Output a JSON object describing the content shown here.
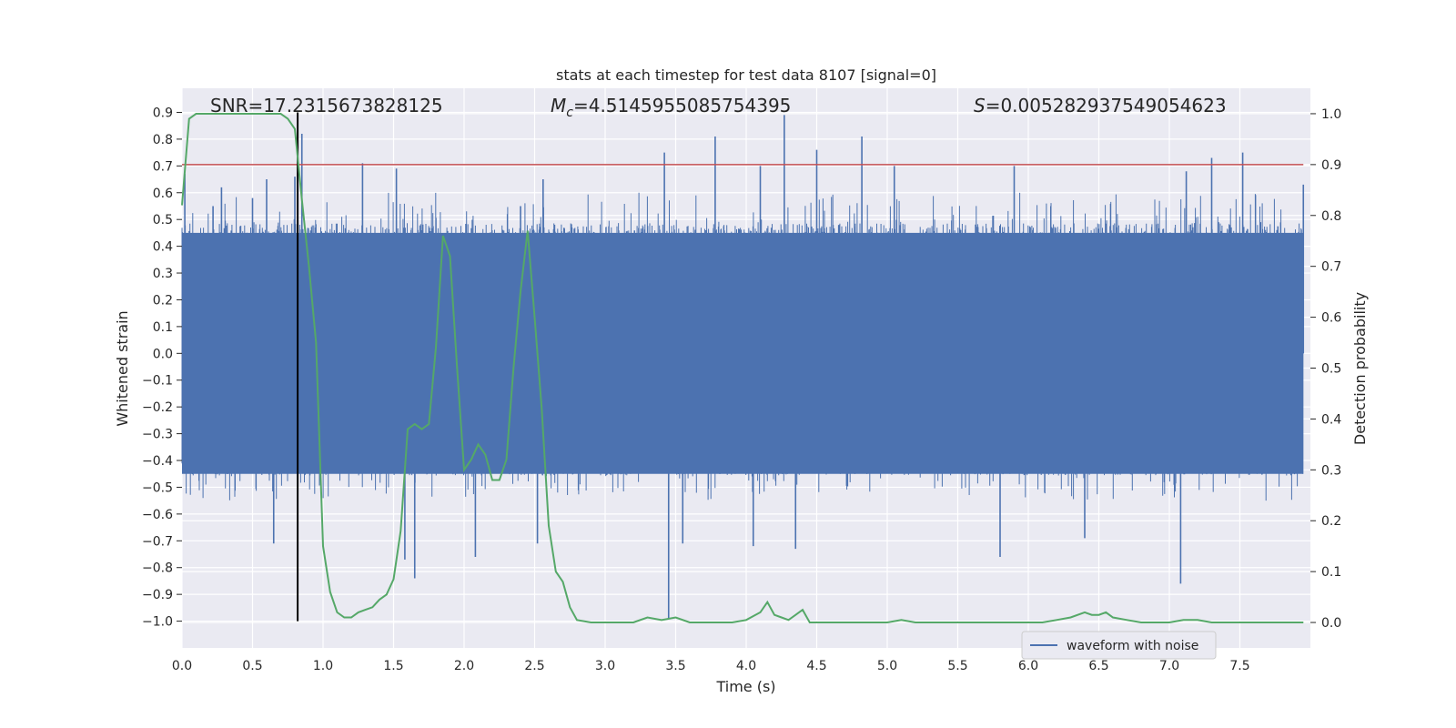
{
  "chart_data": {
    "type": "line",
    "title": "stats at each timestep for test data 8107 [signal=0]",
    "xlabel": "Time (s)",
    "ylabel_left": "Whitened strain",
    "ylabel_right": "Detection probability",
    "xlim": [
      0.0,
      8.0
    ],
    "ylim_left": [
      -1.1,
      0.99
    ],
    "ylim_right": [
      -0.05,
      1.05
    ],
    "x_ticks": [
      "0.0",
      "0.5",
      "1.0",
      "1.5",
      "2.0",
      "2.5",
      "3.0",
      "3.5",
      "4.0",
      "4.5",
      "5.0",
      "5.5",
      "6.0",
      "6.5",
      "7.0",
      "7.5"
    ],
    "y_left_ticks": [
      "0.9",
      "0.8",
      "0.7",
      "0.6",
      "0.5",
      "0.4",
      "0.3",
      "0.2",
      "0.1",
      "0.0",
      "−0.1",
      "−0.2",
      "−0.3",
      "−0.4",
      "−0.5",
      "−0.6",
      "−0.7",
      "−0.8",
      "−0.9",
      "−1.0"
    ],
    "y_right_ticks": [
      "1.0",
      "0.9",
      "0.8",
      "0.7",
      "0.6",
      "0.5",
      "0.4",
      "0.3",
      "0.2",
      "0.1",
      "0.0"
    ],
    "grid": true,
    "legend": {
      "placement": "lower-right",
      "entries": [
        "waveform with noise"
      ]
    },
    "annotations": {
      "snr": "SNR=17.2315673828125",
      "mc_symbol": "M",
      "mc_sub": "c",
      "mc_value": "=4.5145955085754395",
      "s_symbol": "S",
      "s_value": "=0.005282937549054623"
    },
    "threshold": {
      "value": 0.9,
      "axis": "right",
      "color": "#c44e52"
    },
    "peak_marker": {
      "x": 0.82,
      "y_from": -1.0,
      "y_to": 0.9,
      "color": "#000000"
    },
    "series": [
      {
        "name": "waveform with noise",
        "axis": "left",
        "color": "#4c72b0",
        "kind": "noise",
        "band_low": -0.45,
        "band_high": 0.45,
        "envelope": [
          -0.55,
          0.6
        ],
        "spikes": [
          {
            "x": 0.02,
            "y": 0.67
          },
          {
            "x": 0.22,
            "y": 0.55
          },
          {
            "x": 0.28,
            "y": 0.62
          },
          {
            "x": 0.5,
            "y": 0.58
          },
          {
            "x": 0.6,
            "y": 0.65
          },
          {
            "x": 0.8,
            "y": 0.66
          },
          {
            "x": 0.85,
            "y": 0.82
          },
          {
            "x": 1.28,
            "y": 0.71
          },
          {
            "x": 1.52,
            "y": 0.69
          },
          {
            "x": 2.4,
            "y": 0.55
          },
          {
            "x": 2.56,
            "y": 0.65
          },
          {
            "x": 3.42,
            "y": 0.75
          },
          {
            "x": 3.78,
            "y": 0.81
          },
          {
            "x": 4.1,
            "y": 0.7
          },
          {
            "x": 4.27,
            "y": 0.89
          },
          {
            "x": 4.5,
            "y": 0.76
          },
          {
            "x": 4.82,
            "y": 0.81
          },
          {
            "x": 5.05,
            "y": 0.7
          },
          {
            "x": 5.9,
            "y": 0.7
          },
          {
            "x": 7.12,
            "y": 0.68
          },
          {
            "x": 7.3,
            "y": 0.73
          },
          {
            "x": 7.52,
            "y": 0.75
          },
          {
            "x": 7.95,
            "y": 0.63
          },
          {
            "x": 0.65,
            "y": -0.71
          },
          {
            "x": 1.58,
            "y": -0.77
          },
          {
            "x": 1.65,
            "y": -0.84
          },
          {
            "x": 2.08,
            "y": -0.76
          },
          {
            "x": 2.52,
            "y": -0.71
          },
          {
            "x": 3.45,
            "y": -0.99
          },
          {
            "x": 3.55,
            "y": -0.71
          },
          {
            "x": 4.05,
            "y": -0.72
          },
          {
            "x": 4.35,
            "y": -0.73
          },
          {
            "x": 5.8,
            "y": -0.76
          },
          {
            "x": 6.4,
            "y": -0.69
          },
          {
            "x": 7.08,
            "y": -0.86
          }
        ]
      },
      {
        "name": "detection probability",
        "axis": "right",
        "color": "#55a868",
        "x": [
          0.0,
          0.05,
          0.1,
          0.2,
          0.3,
          0.4,
          0.5,
          0.6,
          0.7,
          0.75,
          0.8,
          0.85,
          0.9,
          0.95,
          1.0,
          1.05,
          1.1,
          1.15,
          1.2,
          1.25,
          1.3,
          1.35,
          1.4,
          1.45,
          1.5,
          1.55,
          1.6,
          1.65,
          1.7,
          1.75,
          1.8,
          1.85,
          1.9,
          1.95,
          2.0,
          2.05,
          2.1,
          2.15,
          2.2,
          2.25,
          2.3,
          2.35,
          2.4,
          2.45,
          2.5,
          2.55,
          2.6,
          2.65,
          2.7,
          2.75,
          2.8,
          2.9,
          3.0,
          3.1,
          3.2,
          3.3,
          3.4,
          3.5,
          3.6,
          3.7,
          3.8,
          3.9,
          4.0,
          4.1,
          4.15,
          4.2,
          4.25,
          4.3,
          4.35,
          4.4,
          4.45,
          4.5,
          4.55,
          4.6,
          4.7,
          4.8,
          4.9,
          5.0,
          5.1,
          5.2,
          5.3,
          5.4,
          5.5,
          5.6,
          5.7,
          5.8,
          5.9,
          6.0,
          6.1,
          6.2,
          6.3,
          6.4,
          6.45,
          6.5,
          6.55,
          6.6,
          6.7,
          6.8,
          6.9,
          7.0,
          7.1,
          7.2,
          7.3,
          7.4,
          7.5,
          7.6,
          7.7,
          7.8,
          7.95
        ],
        "y": [
          0.82,
          0.99,
          1.0,
          1.0,
          1.0,
          1.0,
          1.0,
          1.0,
          1.0,
          0.99,
          0.97,
          0.83,
          0.7,
          0.55,
          0.15,
          0.06,
          0.02,
          0.01,
          0.01,
          0.02,
          0.025,
          0.03,
          0.045,
          0.055,
          0.085,
          0.18,
          0.38,
          0.39,
          0.38,
          0.39,
          0.54,
          0.76,
          0.72,
          0.5,
          0.3,
          0.32,
          0.35,
          0.33,
          0.28,
          0.28,
          0.32,
          0.5,
          0.65,
          0.77,
          0.6,
          0.42,
          0.19,
          0.1,
          0.08,
          0.03,
          0.005,
          0.0,
          0.0,
          0.0,
          0.0,
          0.01,
          0.005,
          0.01,
          0.0,
          0.0,
          0.0,
          0.0,
          0.005,
          0.02,
          0.04,
          0.015,
          0.01,
          0.005,
          0.015,
          0.025,
          0.0,
          0.0,
          0.0,
          0.0,
          0.0,
          0.0,
          0.0,
          0.0,
          0.005,
          0.0,
          0.0,
          0.0,
          0.0,
          0.0,
          0.0,
          0.0,
          0.0,
          0.0,
          0.0,
          0.005,
          0.01,
          0.02,
          0.015,
          0.015,
          0.02,
          0.01,
          0.005,
          0.0,
          0.0,
          0.0,
          0.005,
          0.005,
          0.0,
          0.0,
          0.0,
          0.0,
          0.0,
          0.0,
          0.0
        ]
      }
    ]
  }
}
